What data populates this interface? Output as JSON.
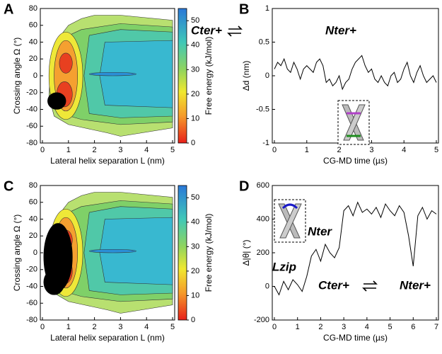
{
  "chart_data": [
    {
      "type": "heatmap",
      "panel_label": "A",
      "xlabel": "Lateral helix separation L (nm)",
      "ylabel": "Crossing angle Ω (°)",
      "xlim": [
        0,
        5
      ],
      "xticks": [
        0,
        1,
        2,
        3,
        4,
        5
      ],
      "ylim": [
        -80,
        80
      ],
      "yticks": [
        -80,
        -60,
        -40,
        -20,
        0,
        20,
        40,
        60,
        80
      ],
      "cbar_label": "Free energy (kJ/mol)",
      "cbar_lim": [
        0,
        55
      ],
      "cbar_ticks": [
        0,
        10,
        20,
        30,
        40,
        50
      ]
    },
    {
      "type": "line",
      "panel_label": "B",
      "xlabel": "CG-MD time (µs)",
      "ylabel": "Δd (nm)",
      "xlim": [
        0,
        5
      ],
      "xticks": [
        0,
        1,
        2,
        3,
        4,
        5
      ],
      "ylim": [
        -1,
        1
      ],
      "yticks": [
        -1,
        -0.5,
        0,
        0.5,
        1
      ],
      "annotations": [
        {
          "text": "Cter+",
          "color": "#1e8c1e"
        },
        {
          "text": "Nter+",
          "color": "#b040c8"
        }
      ],
      "x": [
        0,
        0.1,
        0.2,
        0.3,
        0.4,
        0.5,
        0.6,
        0.7,
        0.8,
        0.9,
        1,
        1.1,
        1.2,
        1.3,
        1.4,
        1.5,
        1.6,
        1.7,
        1.8,
        1.9,
        2,
        2.1,
        2.2,
        2.3,
        2.4,
        2.5,
        2.6,
        2.7,
        2.8,
        2.9,
        3,
        3.1,
        3.2,
        3.3,
        3.4,
        3.5,
        3.6,
        3.7,
        3.8,
        3.9,
        4,
        4.1,
        4.2,
        4.3,
        4.4,
        4.5,
        4.6,
        4.7,
        4.8,
        4.9,
        5
      ],
      "series": [
        {
          "color": "#000000",
          "values": [
            0.1,
            0.2,
            0.15,
            0.25,
            0.1,
            0.05,
            0.2,
            0.1,
            -0.05,
            0.1,
            0.15,
            0.1,
            0.05,
            0.2,
            0.25,
            0.15,
            -0.1,
            -0.05,
            -0.15,
            -0.1,
            0.0,
            -0.2,
            -0.1,
            -0.05,
            0.1,
            0.2,
            0.25,
            0.3,
            0.15,
            0.05,
            0.1,
            -0.05,
            -0.1,
            0.0,
            -0.1,
            -0.15,
            0.0,
            0.05,
            -0.1,
            -0.05,
            0.1,
            0.2,
            0.0,
            -0.1,
            0.05,
            0.15,
            0.0,
            -0.1,
            -0.05,
            0.0,
            -0.1
          ]
        }
      ]
    },
    {
      "type": "heatmap",
      "panel_label": "C",
      "xlabel": "Lateral helix separation L (nm)",
      "ylabel": "Crossing angle Ω (°)",
      "xlim": [
        0,
        5
      ],
      "xticks": [
        0,
        1,
        2,
        3,
        4,
        5
      ],
      "ylim": [
        -80,
        80
      ],
      "yticks": [
        -80,
        -60,
        -40,
        -20,
        0,
        20,
        40,
        60,
        80
      ],
      "cbar_label": "Free energy (kJ/mol)",
      "cbar_lim": [
        0,
        55
      ],
      "cbar_ticks": [
        0,
        10,
        20,
        30,
        40,
        50
      ]
    },
    {
      "type": "line",
      "panel_label": "D",
      "xlabel": "CG-MD time (µs)",
      "ylabel": "Δ|θ| (°)",
      "xlim": [
        0,
        7
      ],
      "xticks": [
        0,
        1,
        2,
        3,
        4,
        5,
        6,
        7
      ],
      "ylim": [
        -200,
        600
      ],
      "yticks": [
        -200,
        0,
        200,
        400,
        600
      ],
      "annotations": [
        {
          "text": "Nter",
          "color": "#e0201a"
        },
        {
          "text": "Lzip",
          "color": "#1a1ac8"
        },
        {
          "text": "Cter+",
          "color": "#1e8c1e"
        },
        {
          "text": "Nter+",
          "color": "#b040c8"
        }
      ],
      "x": [
        0,
        0.2,
        0.4,
        0.6,
        0.8,
        1,
        1.2,
        1.4,
        1.6,
        1.8,
        2,
        2.2,
        2.4,
        2.6,
        2.8,
        3,
        3.2,
        3.4,
        3.6,
        3.8,
        4,
        4.2,
        4.4,
        4.6,
        4.8,
        5,
        5.2,
        5.4,
        5.6,
        5.8,
        6,
        6.2,
        6.4,
        6.6,
        6.8,
        7
      ],
      "series": [
        {
          "color": "#000000",
          "values": [
            0,
            -50,
            30,
            -20,
            40,
            10,
            -30,
            60,
            180,
            220,
            150,
            250,
            200,
            170,
            230,
            450,
            480,
            420,
            500,
            440,
            460,
            430,
            470,
            410,
            490,
            450,
            420,
            480,
            440,
            300,
            120,
            420,
            470,
            400,
            450,
            430
          ]
        }
      ]
    }
  ]
}
